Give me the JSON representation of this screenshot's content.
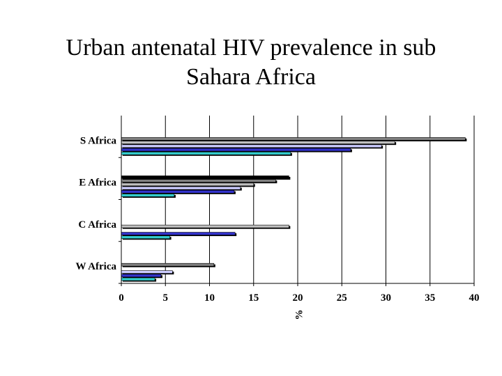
{
  "chart_data": {
    "type": "bar",
    "orientation": "horizontal",
    "title_lines": [
      "Urban antenatal HIV prevalence in sub",
      "Sahara Africa"
    ],
    "xlabel": "%",
    "ylabel": "",
    "xlim": [
      0,
      40
    ],
    "x_ticks": [
      "0",
      "5",
      "10",
      "15",
      "20",
      "25",
      "30",
      "35",
      "40"
    ],
    "grid": "vertical",
    "legend": "none",
    "categories": [
      "S Africa",
      "E Africa",
      "C Africa",
      "W Africa"
    ],
    "series": [
      {
        "color": "#000000",
        "values": [
          0,
          19,
          0,
          0
        ]
      },
      {
        "color": "#808080",
        "values": [
          39,
          17.5,
          0,
          10.5
        ]
      },
      {
        "color": "#c0c0c0",
        "values": [
          31,
          15,
          19,
          0
        ]
      },
      {
        "color": "#ccccff",
        "values": [
          29.5,
          13.5,
          0,
          5.8
        ]
      },
      {
        "color": "#3333cc",
        "values": [
          26,
          12.8,
          12.9,
          4.5
        ]
      },
      {
        "color": "#33cccc",
        "values": [
          19.2,
          6,
          5.5,
          3.8
        ]
      }
    ]
  }
}
